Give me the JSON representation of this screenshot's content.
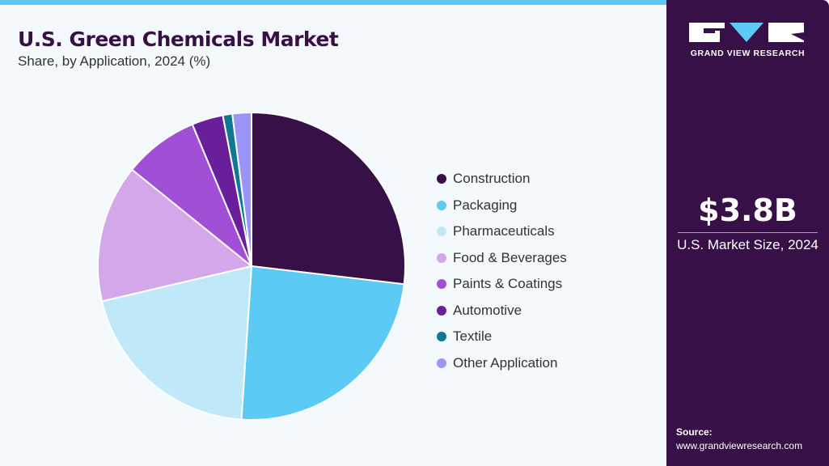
{
  "chart_data": {
    "type": "pie",
    "title": "U.S. Green Chemicals Market",
    "subtitle": "Share, by Application, 2024 (%)",
    "categories": [
      "Construction",
      "Packaging",
      "Pharmaceuticals",
      "Food & Beverages",
      "Paints & Coatings",
      "Automotive",
      "Textile",
      "Other Application"
    ],
    "values": [
      26.9,
      24.2,
      20.3,
      14.5,
      7.9,
      3.3,
      1.0,
      2.0
    ],
    "colors": [
      "#371047",
      "#5bcbf5",
      "#bfe9f9",
      "#d4a7ea",
      "#a24fd8",
      "#6a1f9a",
      "#0f7897",
      "#9b94fb"
    ],
    "start": "12 o'clock, clockwise",
    "legend": "right"
  },
  "side": {
    "brand": "GRAND VIEW RESEARCH",
    "market_size": "$3.8B",
    "market_label": "U.S. Market Size, 2024",
    "source_label": "Source:",
    "source_url": "www.grandviewresearch.com"
  }
}
